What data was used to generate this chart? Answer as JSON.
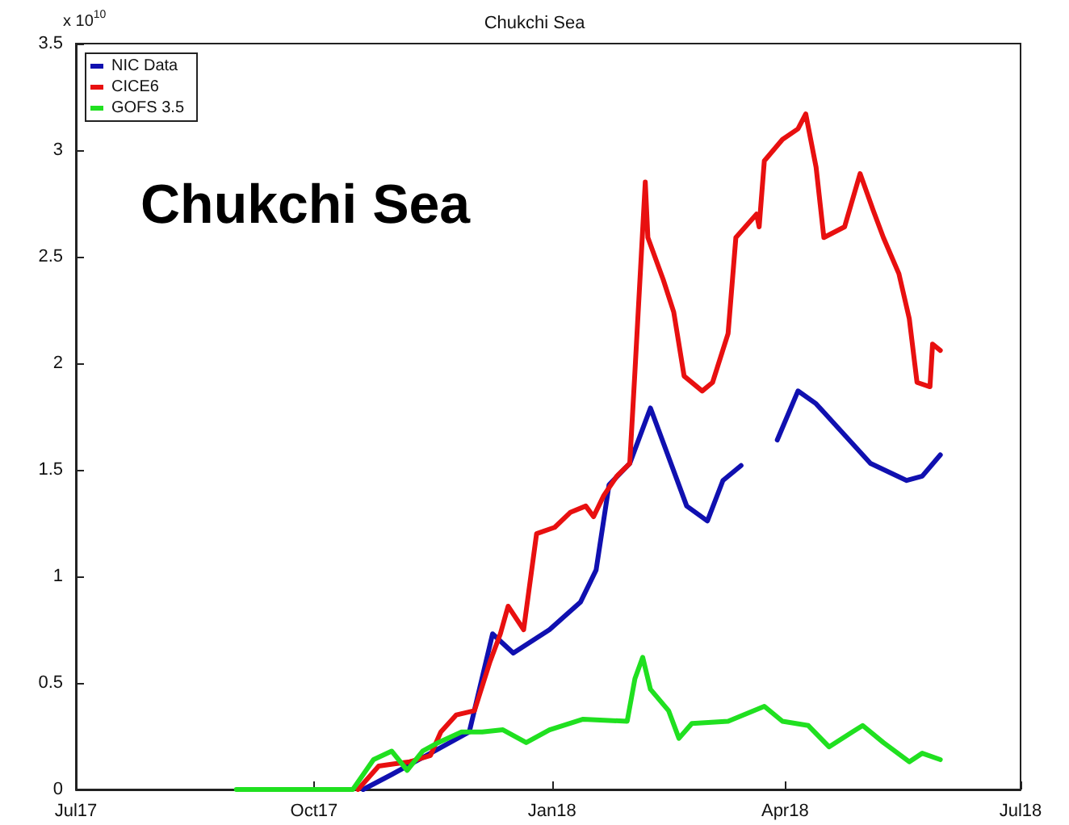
{
  "chart_data": {
    "type": "line",
    "title": "Chukchi Sea",
    "ylabel": "x 10$^{10}$",
    "annotations": [
      "Chukchi Sea"
    ],
    "xlim": [
      "2017-07-01",
      "2018-07-01"
    ],
    "xticks": [
      {
        "value": "2017-07-01",
        "label": "Jul17"
      },
      {
        "value": "2017-10-01",
        "label": "Oct17"
      },
      {
        "value": "2018-01-01",
        "label": "Jan18"
      },
      {
        "value": "2018-04-01",
        "label": "Apr18"
      },
      {
        "value": "2018-07-01",
        "label": "Jul18"
      }
    ],
    "ylim": [
      0,
      3.5
    ],
    "yticks": [
      0,
      0.5,
      1,
      1.5,
      2,
      2.5,
      3,
      3.5
    ],
    "grid": false,
    "legend": "top left",
    "marker": "none",
    "line_style": "solid",
    "series": [
      {
        "name": "NIC Data",
        "color": "#1010b0",
        "x": [
          "2017-10-20",
          "2017-10-31",
          "2017-11-15",
          "2017-11-30",
          "2017-12-09",
          "2017-12-17",
          "2017-12-31",
          "2018-01-12",
          "2018-01-18",
          "2018-01-23",
          "2018-01-31",
          "2018-02-08",
          "2018-02-22",
          "2018-03-02",
          "2018-03-08",
          "2018-03-15",
          "2018-03-22",
          "2018-03-29",
          "2018-04-06",
          "2018-04-13",
          "2018-05-04",
          "2018-05-18",
          "2018-05-24",
          "2018-05-31"
        ],
        "values": [
          0,
          0.07,
          0.17,
          0.27,
          0.73,
          0.64,
          0.75,
          0.88,
          1.03,
          1.43,
          1.53,
          1.79,
          1.33,
          1.26,
          1.45,
          1.52,
          null,
          1.64,
          1.87,
          1.81,
          1.53,
          1.45,
          1.47,
          1.57
        ]
      },
      {
        "name": "CICE6",
        "color": "#e81010",
        "x": [
          "2017-10-18",
          "2017-10-26",
          "2017-11-01",
          "2017-11-07",
          "2017-11-15",
          "2017-11-19",
          "2017-11-25",
          "2017-12-02",
          "2017-12-08",
          "2017-12-12",
          "2017-12-15",
          "2017-12-21",
          "2017-12-26",
          "2018-01-02",
          "2018-01-08",
          "2018-01-14",
          "2018-01-17",
          "2018-01-21",
          "2018-01-26",
          "2018-01-31",
          "2018-02-02",
          "2018-02-06",
          "2018-02-07",
          "2018-02-13",
          "2018-02-17",
          "2018-02-21",
          "2018-02-28",
          "2018-03-04",
          "2018-03-10",
          "2018-03-13",
          "2018-03-21",
          "2018-03-22",
          "2018-03-24",
          "2018-03-31",
          "2018-04-06",
          "2018-04-09",
          "2018-04-13",
          "2018-04-16",
          "2018-04-24",
          "2018-04-30",
          "2018-05-05",
          "2018-05-09",
          "2018-05-15",
          "2018-05-19",
          "2018-05-22",
          "2018-05-27",
          "2018-05-28",
          "2018-05-31"
        ],
        "values": [
          0,
          0.11,
          0.12,
          0.13,
          0.16,
          0.27,
          0.35,
          0.37,
          0.6,
          0.73,
          0.86,
          0.75,
          1.2,
          1.23,
          1.3,
          1.33,
          1.28,
          1.38,
          1.47,
          1.53,
          1.96,
          2.85,
          2.59,
          2.39,
          2.24,
          1.94,
          1.87,
          1.91,
          2.14,
          2.59,
          2.7,
          2.64,
          2.95,
          3.05,
          3.1,
          3.17,
          2.92,
          2.59,
          2.64,
          2.89,
          2.72,
          2.59,
          2.42,
          2.21,
          1.91,
          1.89,
          2.09,
          2.06
        ]
      },
      {
        "name": "GOFS 3.5",
        "color": "#20e020",
        "x": [
          "2017-09-01",
          "2017-10-16",
          "2017-10-24",
          "2017-10-31",
          "2017-11-06",
          "2017-11-12",
          "2017-11-18",
          "2017-11-27",
          "2017-12-05",
          "2017-12-13",
          "2017-12-22",
          "2017-12-31",
          "2018-01-13",
          "2018-01-30",
          "2018-02-02",
          "2018-02-05",
          "2018-02-08",
          "2018-02-15",
          "2018-02-19",
          "2018-02-24",
          "2018-03-10",
          "2018-03-24",
          "2018-03-31",
          "2018-04-10",
          "2018-04-18",
          "2018-04-27",
          "2018-05-01",
          "2018-05-09",
          "2018-05-19",
          "2018-05-24",
          "2018-05-31"
        ],
        "values": [
          0,
          0,
          0.14,
          0.18,
          0.09,
          0.18,
          0.22,
          0.27,
          0.27,
          0.28,
          0.22,
          0.28,
          0.33,
          0.32,
          0.52,
          0.62,
          0.47,
          0.37,
          0.24,
          0.31,
          0.32,
          0.39,
          0.32,
          0.3,
          0.2,
          0.27,
          0.3,
          0.22,
          0.13,
          0.17,
          0.14
        ]
      }
    ]
  }
}
